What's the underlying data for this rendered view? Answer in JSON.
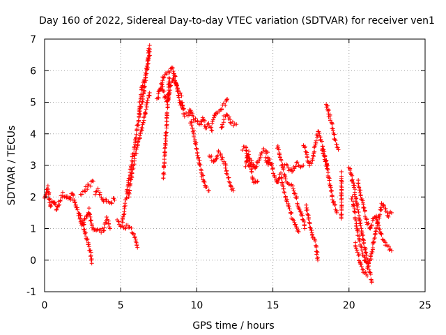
{
  "chart_data": {
    "type": "scatter",
    "title": "Day 160 of 2022, Sidereal Day-to-day VTEC variation (SDTVAR) for receiver ven1",
    "xlabel": "GPS time / hours",
    "ylabel": "SDTVAR / TECUs",
    "xlim": [
      0,
      25
    ],
    "ylim": [
      -1,
      7
    ],
    "xticks": [
      "0",
      "5",
      "10",
      "15",
      "20",
      "25"
    ],
    "yticks": [
      "-1",
      "0",
      "1",
      "2",
      "3",
      "4",
      "5",
      "6",
      "7"
    ],
    "grid": true,
    "marker": "+",
    "color": "#ff0000",
    "series": [
      {
        "name": "SDTVAR",
        "tracks": [
          [
            [
              0.0,
              1.9
            ],
            [
              0.2,
              2.3
            ],
            [
              0.4,
              1.7
            ],
            [
              0.6,
              1.9
            ],
            [
              0.8,
              1.6
            ],
            [
              1.0,
              1.9
            ],
            [
              1.2,
              2.1
            ],
            [
              1.4,
              2.0
            ],
            [
              1.6,
              1.9
            ],
            [
              1.8,
              2.1
            ],
            [
              2.0,
              1.8
            ],
            [
              2.2,
              1.5
            ],
            [
              2.4,
              1.2
            ],
            [
              2.6,
              1.0
            ],
            [
              2.8,
              0.6
            ],
            [
              3.0,
              0.3
            ],
            [
              3.1,
              -0.1
            ]
          ],
          [
            [
              2.3,
              1.4
            ],
            [
              2.5,
              1.1
            ],
            [
              2.7,
              1.3
            ],
            [
              2.9,
              1.6
            ],
            [
              3.1,
              1.1
            ],
            [
              3.3,
              0.9
            ],
            [
              3.5,
              1.0
            ],
            [
              3.7,
              0.9
            ],
            [
              3.9,
              1.0
            ],
            [
              4.1,
              1.3
            ],
            [
              4.3,
              1.0
            ]
          ],
          [
            [
              2.4,
              2.1
            ],
            [
              2.6,
              2.2
            ],
            [
              2.8,
              2.3
            ],
            [
              3.0,
              2.4
            ],
            [
              3.2,
              2.5
            ]
          ],
          [
            [
              3.3,
              2.1
            ],
            [
              3.5,
              2.2
            ],
            [
              3.7,
              2.0
            ],
            [
              3.9,
              1.9
            ],
            [
              4.1,
              1.8
            ],
            [
              4.3,
              1.8
            ],
            [
              4.5,
              1.9
            ],
            [
              4.6,
              1.9
            ]
          ],
          [
            [
              4.8,
              1.3
            ],
            [
              5.0,
              1.1
            ],
            [
              5.2,
              1.0
            ],
            [
              5.4,
              1.1
            ],
            [
              5.6,
              1.0
            ],
            [
              5.8,
              0.9
            ],
            [
              6.0,
              0.6
            ],
            [
              6.1,
              0.4
            ]
          ],
          [
            [
              5.1,
              1.2
            ],
            [
              5.3,
              1.8
            ],
            [
              5.5,
              2.4
            ],
            [
              5.7,
              3.0
            ],
            [
              5.9,
              3.6
            ],
            [
              6.1,
              4.2
            ],
            [
              6.3,
              4.8
            ],
            [
              6.5,
              5.2
            ],
            [
              6.7,
              6.0
            ],
            [
              6.9,
              6.6
            ]
          ],
          [
            [
              5.5,
              2.0
            ],
            [
              5.7,
              2.6
            ],
            [
              5.9,
              3.2
            ],
            [
              6.1,
              3.6
            ],
            [
              6.3,
              4.0
            ],
            [
              6.5,
              4.4
            ],
            [
              6.7,
              4.9
            ],
            [
              6.9,
              5.3
            ]
          ],
          [
            [
              6.2,
              4.7
            ],
            [
              6.4,
              5.5
            ],
            [
              6.6,
              5.8
            ],
            [
              6.8,
              6.4
            ],
            [
              6.9,
              6.8
            ]
          ],
          [
            [
              7.5,
              5.4
            ],
            [
              7.7,
              5.5
            ],
            [
              7.9,
              5.2
            ],
            [
              8.1,
              5.0
            ],
            [
              8.3,
              5.6
            ],
            [
              8.5,
              5.8
            ],
            [
              8.7,
              5.5
            ],
            [
              8.9,
              5.0
            ],
            [
              9.1,
              4.8
            ]
          ],
          [
            [
              7.4,
              5.1
            ],
            [
              7.6,
              5.4
            ],
            [
              7.8,
              5.8
            ],
            [
              8.0,
              5.9
            ],
            [
              8.2,
              6.0
            ],
            [
              8.4,
              6.1
            ],
            [
              8.6,
              5.7
            ],
            [
              8.8,
              5.3
            ],
            [
              9.0,
              5.2
            ]
          ],
          [
            [
              8.2,
              5.8
            ],
            [
              8.1,
              5.0
            ],
            [
              8.0,
              4.2
            ],
            [
              7.9,
              3.4
            ],
            [
              7.8,
              2.6
            ]
          ],
          [
            [
              9.0,
              5.0
            ],
            [
              9.2,
              4.6
            ],
            [
              9.4,
              4.6
            ],
            [
              9.6,
              4.8
            ],
            [
              9.8,
              4.5
            ],
            [
              10.0,
              4.4
            ],
            [
              10.2,
              4.3
            ],
            [
              10.4,
              4.5
            ],
            [
              10.6,
              4.2
            ],
            [
              10.8,
              4.3
            ],
            [
              11.0,
              4.1
            ]
          ],
          [
            [
              9.6,
              4.4
            ],
            [
              9.8,
              4.0
            ],
            [
              10.0,
              3.5
            ],
            [
              10.2,
              3.0
            ],
            [
              10.4,
              2.6
            ],
            [
              10.6,
              2.3
            ],
            [
              10.8,
              2.2
            ]
          ],
          [
            [
              10.8,
              3.3
            ],
            [
              11.0,
              3.2
            ],
            [
              11.2,
              3.1
            ],
            [
              11.4,
              3.4
            ],
            [
              11.6,
              3.3
            ],
            [
              11.8,
              3.1
            ],
            [
              12.0,
              2.7
            ],
            [
              12.2,
              2.4
            ],
            [
              12.4,
              2.2
            ]
          ],
          [
            [
              11.0,
              4.4
            ],
            [
              11.3,
              4.7
            ],
            [
              11.6,
              4.8
            ],
            [
              11.9,
              5.0
            ],
            [
              12.0,
              5.1
            ]
          ],
          [
            [
              11.6,
              4.2
            ],
            [
              11.8,
              4.5
            ],
            [
              12.0,
              4.6
            ],
            [
              12.2,
              4.4
            ],
            [
              12.4,
              4.3
            ],
            [
              12.6,
              4.3
            ]
          ],
          [
            [
              13.0,
              3.5
            ],
            [
              13.2,
              3.6
            ],
            [
              13.4,
              3.0
            ],
            [
              13.6,
              3.1
            ],
            [
              13.8,
              2.9
            ],
            [
              14.0,
              3.1
            ],
            [
              14.2,
              3.3
            ],
            [
              14.4,
              3.5
            ],
            [
              14.6,
              3.4
            ],
            [
              14.8,
              3.1
            ]
          ],
          [
            [
              13.2,
              3.0
            ],
            [
              13.4,
              3.4
            ],
            [
              13.6,
              2.8
            ],
            [
              13.8,
              2.4
            ],
            [
              14.0,
              2.5
            ]
          ],
          [
            [
              14.5,
              3.2
            ],
            [
              14.7,
              3.0
            ],
            [
              14.9,
              3.1
            ],
            [
              15.1,
              2.6
            ],
            [
              15.3,
              2.4
            ],
            [
              15.5,
              2.7
            ],
            [
              15.7,
              2.2
            ],
            [
              15.9,
              1.9
            ],
            [
              16.1,
              1.6
            ],
            [
              16.3,
              1.3
            ],
            [
              16.5,
              1.1
            ],
            [
              16.7,
              0.9
            ]
          ],
          [
            [
              15.3,
              3.6
            ],
            [
              15.5,
              3.2
            ],
            [
              15.7,
              2.8
            ],
            [
              15.9,
              2.5
            ],
            [
              16.1,
              2.4
            ],
            [
              16.3,
              2.3
            ],
            [
              16.5,
              2.0
            ],
            [
              16.7,
              1.7
            ],
            [
              16.9,
              1.4
            ],
            [
              17.1,
              1.0
            ]
          ],
          [
            [
              15.8,
              3.0
            ],
            [
              16.0,
              2.9
            ],
            [
              16.2,
              2.8
            ],
            [
              16.4,
              2.9
            ],
            [
              16.6,
              3.1
            ],
            [
              16.8,
              3.0
            ],
            [
              17.0,
              3.0
            ]
          ],
          [
            [
              17.0,
              3.7
            ],
            [
              17.2,
              3.4
            ],
            [
              17.4,
              3.0
            ],
            [
              17.6,
              3.1
            ],
            [
              17.8,
              3.7
            ],
            [
              18.0,
              4.1
            ],
            [
              18.2,
              3.7
            ],
            [
              18.4,
              3.3
            ],
            [
              18.6,
              3.0
            ]
          ],
          [
            [
              17.2,
              1.7
            ],
            [
              17.4,
              1.2
            ],
            [
              17.6,
              0.8
            ],
            [
              17.8,
              0.5
            ],
            [
              17.95,
              0.0
            ]
          ],
          [
            [
              18.2,
              3.5
            ],
            [
              18.4,
              3.3
            ],
            [
              18.6,
              2.8
            ],
            [
              18.8,
              2.3
            ],
            [
              19.0,
              1.8
            ],
            [
              19.2,
              1.5
            ]
          ],
          [
            [
              18.5,
              5.0
            ],
            [
              18.7,
              4.6
            ],
            [
              18.9,
              4.2
            ],
            [
              19.1,
              3.8
            ],
            [
              19.3,
              3.5
            ]
          ],
          [
            [
              19.5,
              1.3
            ],
            [
              19.5,
              2.8
            ]
          ],
          [
            [
              20.0,
              3.0
            ],
            [
              20.2,
              2.6
            ],
            [
              20.4,
              2.1
            ],
            [
              20.6,
              1.6
            ],
            [
              20.8,
              1.0
            ],
            [
              21.0,
              0.5
            ],
            [
              21.2,
              0.0
            ],
            [
              21.4,
              -0.5
            ],
            [
              21.5,
              -0.7
            ]
          ],
          [
            [
              20.2,
              2.0
            ],
            [
              20.4,
              1.4
            ],
            [
              20.6,
              0.8
            ],
            [
              20.8,
              0.4
            ],
            [
              21.0,
              0.1
            ],
            [
              21.2,
              -0.2
            ],
            [
              21.4,
              0.0
            ],
            [
              21.6,
              0.5
            ],
            [
              21.8,
              1.0
            ],
            [
              22.0,
              1.5
            ],
            [
              22.2,
              1.8
            ],
            [
              22.4,
              1.6
            ],
            [
              22.6,
              1.4
            ],
            [
              22.8,
              1.5
            ]
          ],
          [
            [
              20.6,
              2.5
            ],
            [
              20.8,
              2.0
            ],
            [
              21.0,
              1.6
            ],
            [
              21.2,
              1.2
            ],
            [
              21.4,
              1.0
            ],
            [
              21.6,
              1.3
            ],
            [
              21.8,
              1.4
            ],
            [
              22.0,
              1.0
            ],
            [
              22.2,
              0.7
            ],
            [
              22.4,
              0.5
            ],
            [
              22.6,
              0.4
            ],
            [
              22.8,
              0.3
            ]
          ],
          [
            [
              20.4,
              0.5
            ],
            [
              20.6,
              0.2
            ],
            [
              20.8,
              -0.2
            ],
            [
              21.0,
              -0.4
            ],
            [
              21.2,
              -0.5
            ]
          ]
        ]
      }
    ]
  }
}
